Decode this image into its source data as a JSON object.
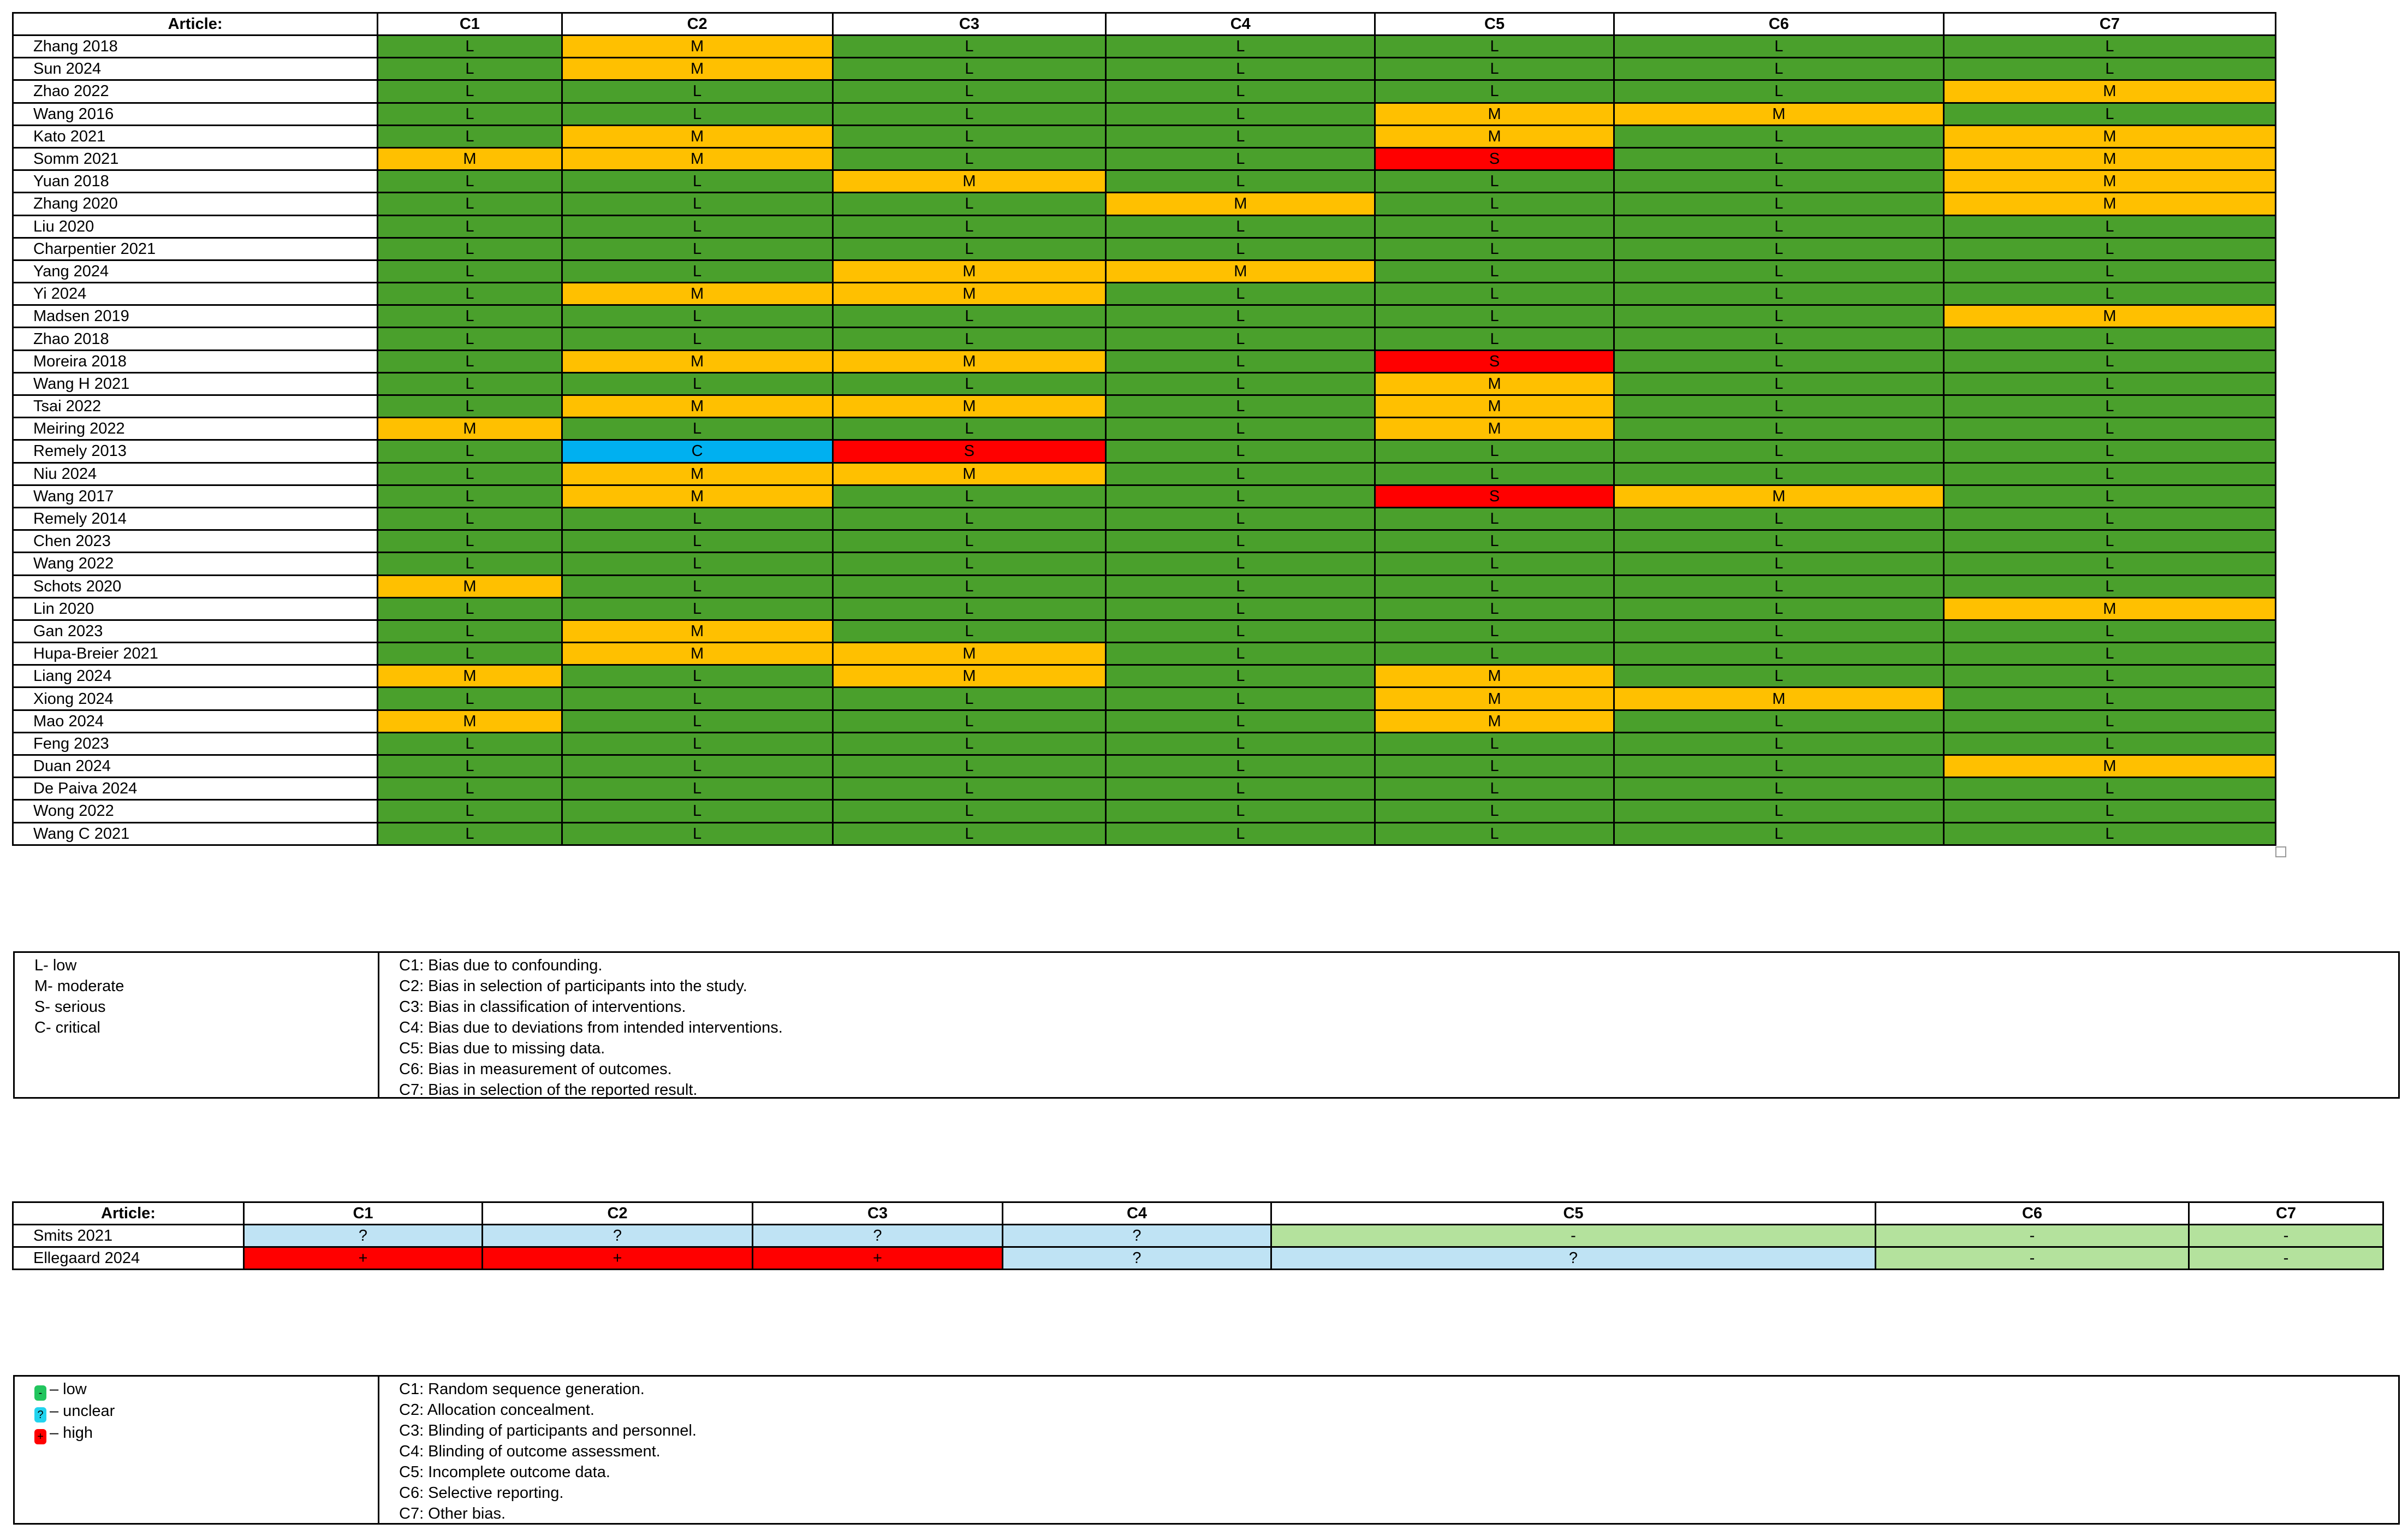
{
  "robins": {
    "article_header": "Article:",
    "columns": [
      "C1",
      "C2",
      "C3",
      "C4",
      "C5",
      "C6",
      "C7"
    ],
    "rows": [
      {
        "article": "Zhang 2018",
        "ratings": [
          "L",
          "M",
          "L",
          "L",
          "L",
          "L",
          "L"
        ]
      },
      {
        "article": "Sun 2024",
        "ratings": [
          "L",
          "M",
          "L",
          "L",
          "L",
          "L",
          "L"
        ]
      },
      {
        "article": "Zhao 2022",
        "ratings": [
          "L",
          "L",
          "L",
          "L",
          "L",
          "L",
          "M"
        ]
      },
      {
        "article": "Wang 2016",
        "ratings": [
          "L",
          "L",
          "L",
          "L",
          "M",
          "M",
          "L"
        ]
      },
      {
        "article": "Kato 2021",
        "ratings": [
          "L",
          "M",
          "L",
          "L",
          "M",
          "L",
          "M"
        ]
      },
      {
        "article": "Somm 2021",
        "ratings": [
          "M",
          "M",
          "L",
          "L",
          "S",
          "L",
          "M"
        ]
      },
      {
        "article": "Yuan 2018",
        "ratings": [
          "L",
          "L",
          "M",
          "L",
          "L",
          "L",
          "M"
        ]
      },
      {
        "article": "Zhang 2020",
        "ratings": [
          "L",
          "L",
          "L",
          "M",
          "L",
          "L",
          "M"
        ]
      },
      {
        "article": "Liu 2020",
        "ratings": [
          "L",
          "L",
          "L",
          "L",
          "L",
          "L",
          "L"
        ]
      },
      {
        "article": "Charpentier 2021",
        "ratings": [
          "L",
          "L",
          "L",
          "L",
          "L",
          "L",
          "L"
        ]
      },
      {
        "article": "Yang 2024",
        "ratings": [
          "L",
          "L",
          "M",
          "M",
          "L",
          "L",
          "L"
        ]
      },
      {
        "article": "Yi 2024",
        "ratings": [
          "L",
          "M",
          "M",
          "L",
          "L",
          "L",
          "L"
        ]
      },
      {
        "article": "Madsen 2019",
        "ratings": [
          "L",
          "L",
          "L",
          "L",
          "L",
          "L",
          "M"
        ]
      },
      {
        "article": "Zhao 2018",
        "ratings": [
          "L",
          "L",
          "L",
          "L",
          "L",
          "L",
          "L"
        ]
      },
      {
        "article": "Moreira 2018",
        "ratings": [
          "L",
          "M",
          "M",
          "L",
          "S",
          "L",
          "L"
        ]
      },
      {
        "article": "Wang H 2021",
        "ratings": [
          "L",
          "L",
          "L",
          "L",
          "M",
          "L",
          "L"
        ]
      },
      {
        "article": "Tsai 2022",
        "ratings": [
          "L",
          "M",
          "M",
          "L",
          "M",
          "L",
          "L"
        ]
      },
      {
        "article": "Meiring 2022",
        "ratings": [
          "M",
          "L",
          "L",
          "L",
          "M",
          "L",
          "L"
        ]
      },
      {
        "article": "Remely 2013",
        "ratings": [
          "L",
          "C",
          "S",
          "L",
          "L",
          "L",
          "L"
        ]
      },
      {
        "article": "Niu 2024",
        "ratings": [
          "L",
          "M",
          "M",
          "L",
          "L",
          "L",
          "L"
        ]
      },
      {
        "article": "Wang 2017",
        "ratings": [
          "L",
          "M",
          "L",
          "L",
          "S",
          "M",
          "L"
        ]
      },
      {
        "article": "Remely 2014",
        "ratings": [
          "L",
          "L",
          "L",
          "L",
          "L",
          "L",
          "L"
        ]
      },
      {
        "article": "Chen 2023",
        "ratings": [
          "L",
          "L",
          "L",
          "L",
          "L",
          "L",
          "L"
        ]
      },
      {
        "article": "Wang 2022",
        "ratings": [
          "L",
          "L",
          "L",
          "L",
          "L",
          "L",
          "L"
        ]
      },
      {
        "article": "Schots 2020",
        "ratings": [
          "M",
          "L",
          "L",
          "L",
          "L",
          "L",
          "L"
        ]
      },
      {
        "article": "Lin 2020",
        "ratings": [
          "L",
          "L",
          "L",
          "L",
          "L",
          "L",
          "M"
        ]
      },
      {
        "article": "Gan 2023",
        "ratings": [
          "L",
          "M",
          "L",
          "L",
          "L",
          "L",
          "L"
        ]
      },
      {
        "article": "Hupa-Breier 2021",
        "ratings": [
          "L",
          "M",
          "M",
          "L",
          "L",
          "L",
          "L"
        ]
      },
      {
        "article": "Liang 2024",
        "ratings": [
          "M",
          "L",
          "M",
          "L",
          "M",
          "L",
          "L"
        ]
      },
      {
        "article": "Xiong 2024",
        "ratings": [
          "L",
          "L",
          "L",
          "L",
          "M",
          "M",
          "L"
        ]
      },
      {
        "article": "Mao 2024",
        "ratings": [
          "M",
          "L",
          "L",
          "L",
          "M",
          "L",
          "L"
        ]
      },
      {
        "article": "Feng 2023",
        "ratings": [
          "L",
          "L",
          "L",
          "L",
          "L",
          "L",
          "L"
        ]
      },
      {
        "article": "Duan 2024",
        "ratings": [
          "L",
          "L",
          "L",
          "L",
          "L",
          "L",
          "M"
        ]
      },
      {
        "article": "De Paiva 2024",
        "ratings": [
          "L",
          "L",
          "L",
          "L",
          "L",
          "L",
          "L"
        ]
      },
      {
        "article": "Wong 2022",
        "ratings": [
          "L",
          "L",
          "L",
          "L",
          "L",
          "L",
          "L"
        ]
      },
      {
        "article": "Wang C 2021",
        "ratings": [
          "L",
          "L",
          "L",
          "L",
          "L",
          "L",
          "L"
        ]
      }
    ]
  },
  "robins_legend": {
    "levels": [
      "L- low",
      "M- moderate",
      "S- serious",
      "C- critical"
    ],
    "criteria": [
      "C1: Bias due to confounding.",
      "C2: Bias in selection of participants into the study.",
      "C3: Bias in classification of interventions.",
      "C4: Bias due to deviations from intended interventions.",
      "C5: Bias due to missing data.",
      "C6: Bias in measurement of outcomes.",
      "C7: Bias in selection of the reported result."
    ]
  },
  "rob": {
    "article_header": "Article:",
    "columns": [
      "C1",
      "C2",
      "C3",
      "C4",
      "C5",
      "C6",
      "C7"
    ],
    "rows": [
      {
        "article": "Smits 2021",
        "ratings": [
          "?",
          "?",
          "?",
          "?",
          "-",
          "-",
          "-"
        ]
      },
      {
        "article": "Ellegaard 2024",
        "ratings": [
          "+",
          "+",
          "+",
          "?",
          "?",
          "-",
          "-"
        ]
      }
    ]
  },
  "rob_legend": {
    "levels": [
      {
        "symbol": "-",
        "text": "– low"
      },
      {
        "symbol": "?",
        "text": "– unclear"
      },
      {
        "symbol": "+",
        "text": "– high"
      }
    ],
    "criteria": [
      "C1: Random sequence generation.",
      "C2: Allocation concealment.",
      "C3: Blinding of participants and personnel.",
      "C4: Blinding of outcome assessment.",
      "C5: Incomplete outcome data.",
      "C6: Selective reporting.",
      "C7: Other bias."
    ]
  },
  "colors": {
    "L": "#4aa02c",
    "M": "#ffc000",
    "S": "#ff0000",
    "C": "#00b0f0",
    "unclear": "#bfe3f4",
    "low": "#b4e29d",
    "high": "#ff0000",
    "low_swatch": "#22c55e",
    "unclear_swatch": "#22d3ee"
  }
}
